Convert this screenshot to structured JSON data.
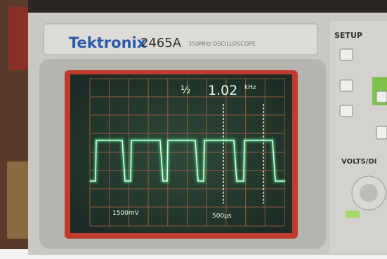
{
  "header": {
    "brand": "Tektronix",
    "model": "2465A",
    "subtitle": "350MHz OSCILLOSCOPE"
  },
  "screen": {
    "readout_prefix": "½",
    "frequency": "1.02",
    "frequency_unit": "kHz",
    "channel_scale": "1500mV",
    "timebase": "500µs"
  },
  "panel": {
    "setup": "SETUP",
    "volts_div": "VOLTS/DI"
  }
}
